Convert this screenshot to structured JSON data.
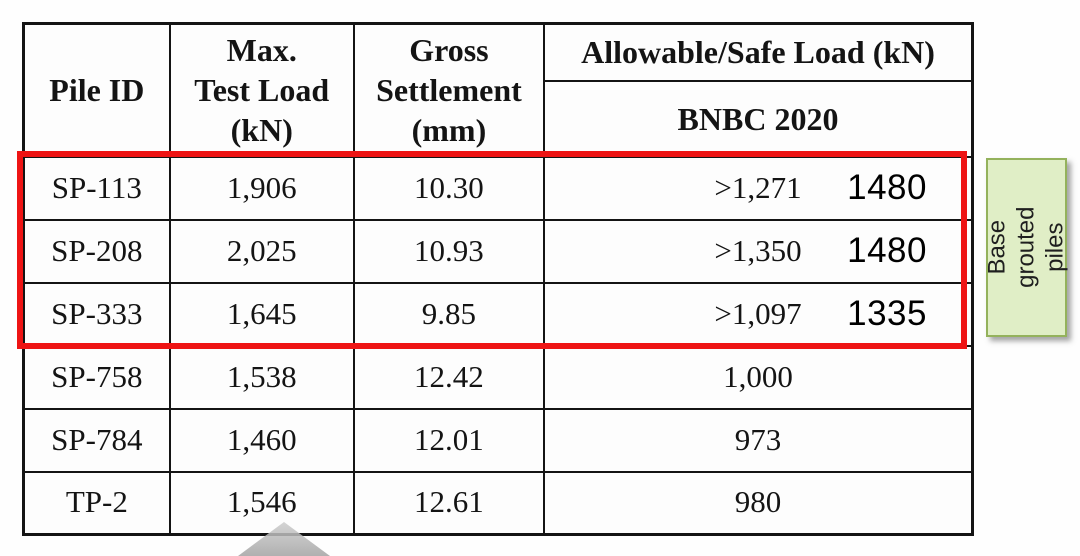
{
  "table": {
    "headers": {
      "pile_id": "Pile ID",
      "max_test_load": "Max.\nTest Load\n(kN)",
      "gross_settlement": "Gross\nSettlement\n(mm)",
      "allowable_safe_load": "Allowable/Safe Load (kN)",
      "bnbc": "BNBC 2020"
    },
    "rows": [
      {
        "pile_id": "SP-113",
        "max_test_load": "1,906",
        "gross_settlement": "10.30",
        "bnbc_value": ">1,271",
        "annotation": "1480"
      },
      {
        "pile_id": "SP-208",
        "max_test_load": "2,025",
        "gross_settlement": "10.93",
        "bnbc_value": ">1,350",
        "annotation": "1480"
      },
      {
        "pile_id": "SP-333",
        "max_test_load": "1,645",
        "gross_settlement": "9.85",
        "bnbc_value": ">1,097",
        "annotation": "1335"
      },
      {
        "pile_id": "SP-758",
        "max_test_load": "1,538",
        "gross_settlement": "12.42",
        "bnbc_value": "1,000",
        "annotation": ""
      },
      {
        "pile_id": "SP-784",
        "max_test_load": "1,460",
        "gross_settlement": "12.01",
        "bnbc_value": "973",
        "annotation": ""
      },
      {
        "pile_id": "TP-2",
        "max_test_load": "1,546",
        "gross_settlement": "12.61",
        "bnbc_value": "980",
        "annotation": ""
      }
    ]
  },
  "callout": {
    "label": "Base grouted\npiles"
  },
  "colors": {
    "highlight_red": "#ee1414",
    "callout_fill": "#e0eec6",
    "callout_border": "#94b25c"
  }
}
